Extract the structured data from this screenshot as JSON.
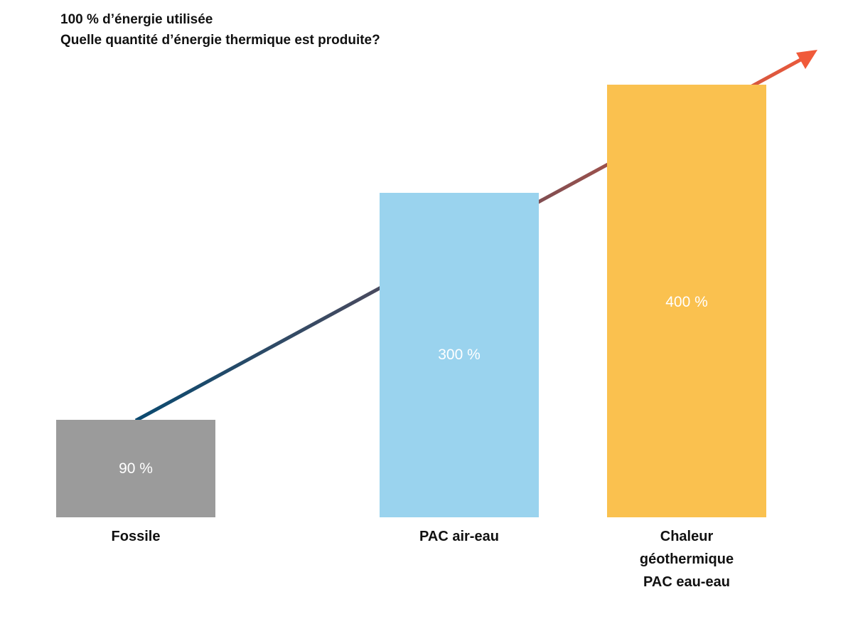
{
  "chart_data": {
    "type": "bar",
    "title": "100 % d’énergie utilisée",
    "subtitle": "Quelle quantité d’énergie thermique est produite?",
    "categories": [
      "Fossile",
      "PAC air-eau",
      "Chaleur\ngéothermique\nPAC eau-eau"
    ],
    "values": [
      90,
      300,
      400
    ],
    "value_labels": [
      "90 %",
      "300 %",
      "400 %"
    ],
    "colors": [
      "#9b9b9b",
      "#9ad3ee",
      "#fac14f"
    ]
  }
}
